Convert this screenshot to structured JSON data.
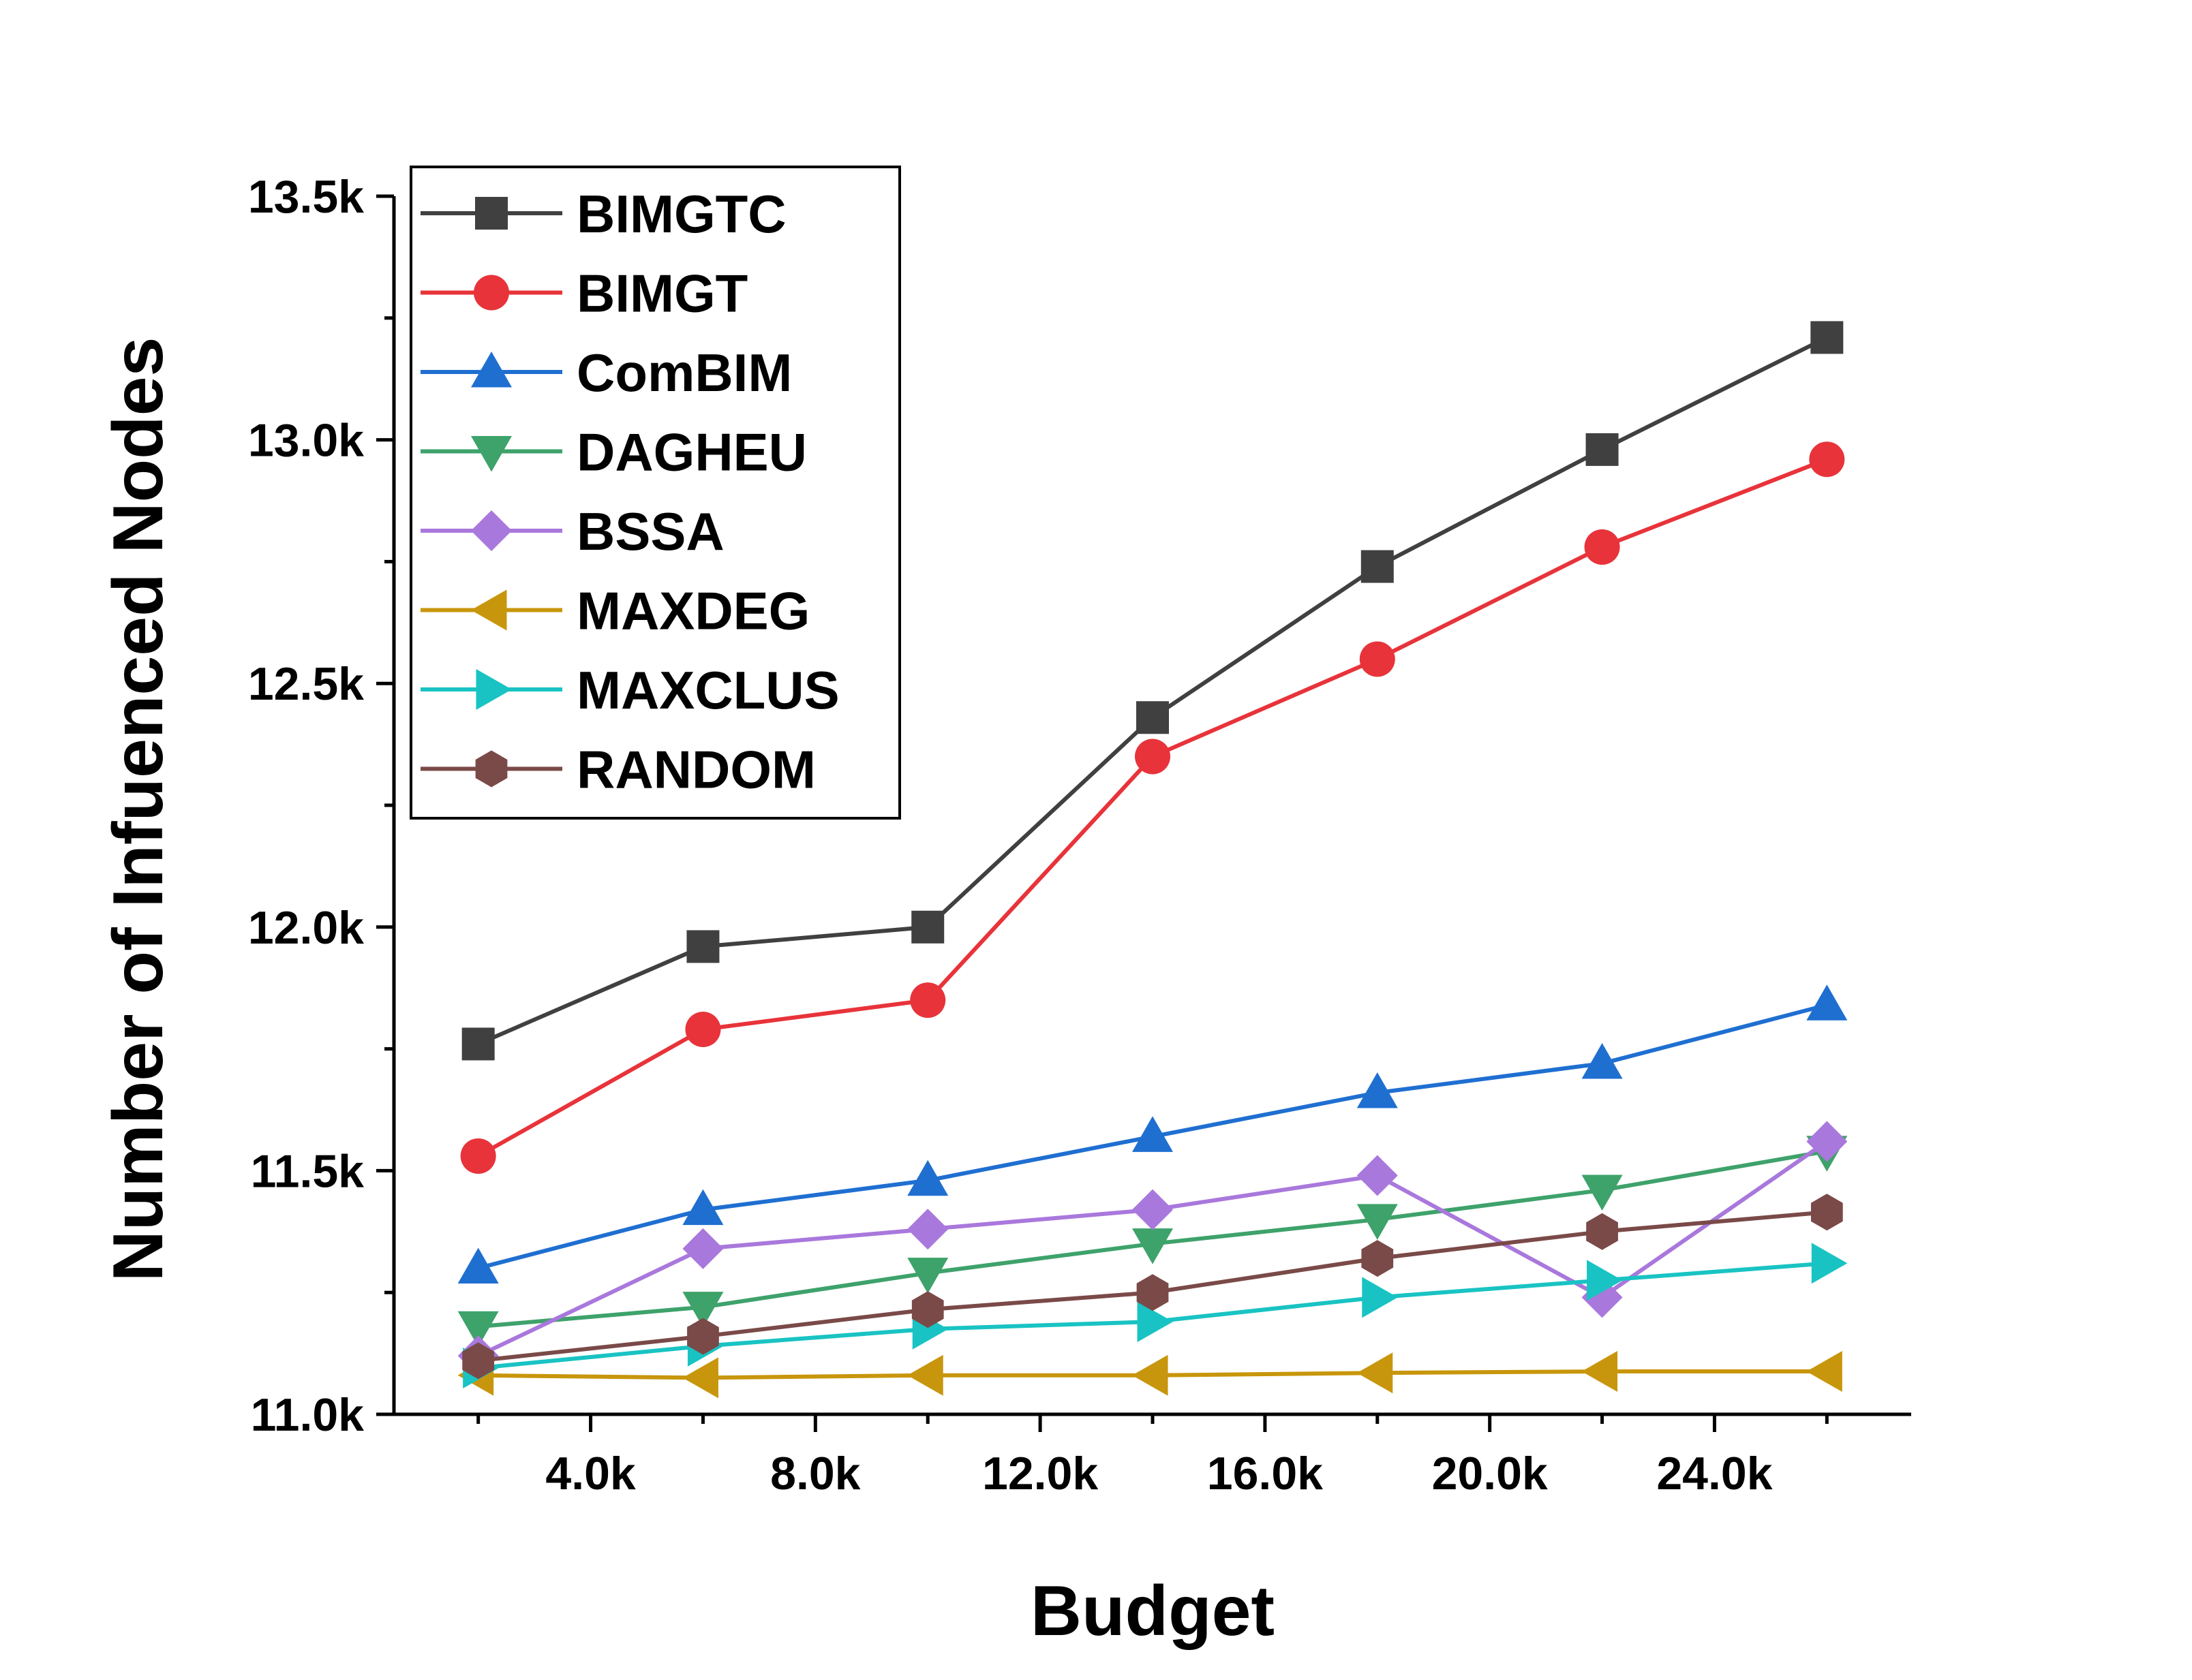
{
  "chart_data": {
    "type": "line",
    "title": "",
    "xlabel": "Budget",
    "ylabel": "Number of Infuenced Nodes",
    "xlim": [
      500,
      27500
    ],
    "ylim": [
      11000,
      13500
    ],
    "x": [
      2000,
      6000,
      10000,
      14000,
      18000,
      22000,
      26000
    ],
    "x_ticks": [
      4000,
      8000,
      12000,
      16000,
      20000,
      24000
    ],
    "x_tick_labels": [
      "4.0k",
      "8.0k",
      "12.0k",
      "16.0k",
      "20.0k",
      "24.0k"
    ],
    "y_ticks": [
      11000,
      11500,
      12000,
      12500,
      13000,
      13500
    ],
    "y_tick_labels": [
      "11.0k",
      "11.5k",
      "12.0k",
      "12.5k",
      "13.0k",
      "13.5k"
    ],
    "grid": false,
    "legend_position": "top-left",
    "series": [
      {
        "name": "BIMGTC",
        "color": "#404040",
        "marker": "square",
        "values": [
          11760,
          11960,
          12000,
          12430,
          12740,
          12980,
          13210
        ]
      },
      {
        "name": "BIMGT",
        "color": "#e8333a",
        "marker": "circle",
        "values": [
          11530,
          11790,
          11850,
          12350,
          12550,
          12780,
          12960
        ]
      },
      {
        "name": "ComBIM",
        "color": "#1f6fd1",
        "marker": "triangle-up",
        "values": [
          11300,
          11420,
          11480,
          11570,
          11660,
          11720,
          11840
        ]
      },
      {
        "name": "DAGHEU",
        "color": "#3ea26b",
        "marker": "triangle-down",
        "values": [
          11180,
          11220,
          11290,
          11350,
          11400,
          11460,
          11540
        ]
      },
      {
        "name": "BSSA",
        "color": "#a978dc",
        "marker": "diamond",
        "values": [
          11120,
          11340,
          11380,
          11420,
          11490,
          11240,
          11560
        ]
      },
      {
        "name": "MAXDEG",
        "color": "#c8960c",
        "marker": "triangle-left",
        "values": [
          11080,
          11075,
          11080,
          11080,
          11085,
          11088,
          11088
        ]
      },
      {
        "name": "MAXCLUS",
        "color": "#19c3c3",
        "marker": "triangle-right",
        "values": [
          11095,
          11140,
          11175,
          11190,
          11240,
          11275,
          11310
        ]
      },
      {
        "name": "RANDOM",
        "color": "#7a4a48",
        "marker": "hexagon",
        "values": [
          11110,
          11160,
          11215,
          11250,
          11320,
          11375,
          11415
        ]
      }
    ]
  }
}
